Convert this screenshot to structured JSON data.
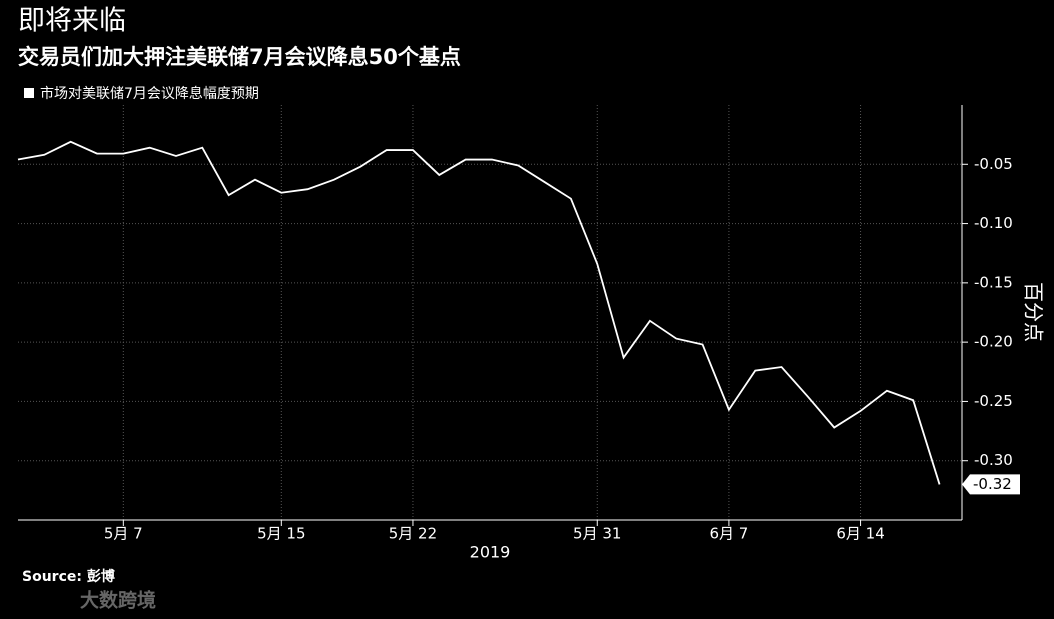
{
  "chart_data": {
    "type": "line",
    "title": "即将来临",
    "subtitle": "交易员们加大押注美联储7月会议降息50个基点",
    "ylabel": "百分点",
    "xlabel": "2019",
    "source": "Source: 彭博",
    "watermark": "大数跨境",
    "categories": [
      null,
      null,
      null,
      null,
      "5月 7",
      null,
      null,
      null,
      null,
      null,
      "5月 15",
      null,
      null,
      null,
      null,
      "5月 22",
      null,
      null,
      null,
      null,
      null,
      null,
      "5月 31",
      null,
      null,
      null,
      null,
      "6月 7",
      null,
      null,
      null,
      null,
      "6月 14",
      null,
      null,
      null
    ],
    "series": [
      {
        "name": "市场对美联储7月会议降息幅度预期",
        "color": "#ffffff",
        "values": [
          -0.046,
          -0.042,
          -0.031,
          -0.041,
          -0.041,
          -0.036,
          -0.043,
          -0.036,
          -0.076,
          -0.063,
          -0.074,
          -0.071,
          -0.063,
          -0.052,
          -0.038,
          -0.038,
          -0.059,
          -0.046,
          -0.046,
          -0.051,
          -0.065,
          -0.079,
          -0.134,
          -0.213,
          -0.182,
          -0.197,
          -0.202,
          -0.257,
          -0.224,
          -0.221,
          -0.246,
          -0.272,
          -0.258,
          -0.241,
          -0.249,
          -0.32
        ]
      }
    ],
    "ylim": [
      -0.35,
      0.0
    ],
    "yticks": [
      -0.05,
      {
        "value": -0.1,
        "label": "-0.10"
      },
      -0.15,
      {
        "value": -0.2,
        "label": "-0.20"
      },
      -0.25,
      {
        "value": -0.3,
        "label": "-0.30"
      }
    ],
    "grid": true
  }
}
